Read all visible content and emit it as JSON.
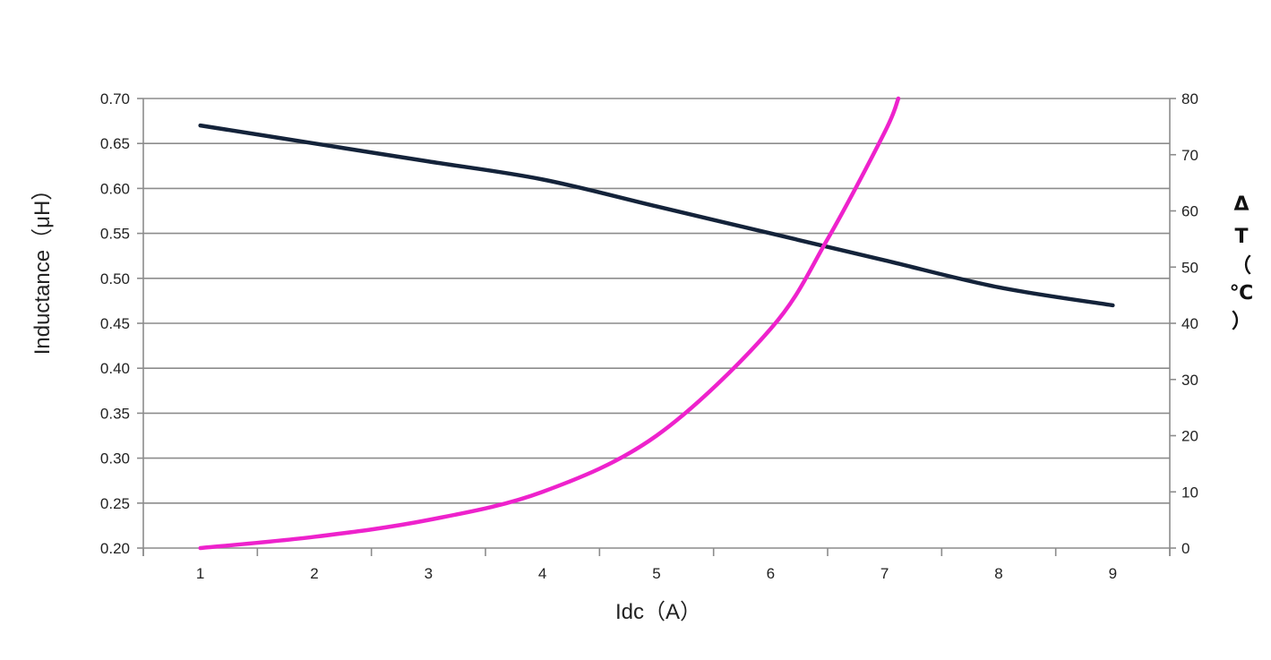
{
  "chart_data": {
    "type": "line",
    "xlabel": "Idc（A）",
    "ylabel": "Inductance（μH）",
    "y2label_chars": [
      "Δ",
      "T",
      "（",
      "℃",
      "）"
    ],
    "x": [
      1,
      2,
      3,
      4,
      5,
      6,
      7,
      8,
      9
    ],
    "x_ticks": [
      "1",
      "2",
      "3",
      "4",
      "5",
      "6",
      "7",
      "8",
      "9"
    ],
    "y_ticks": [
      "0.20",
      "0.25",
      "0.30",
      "0.35",
      "0.40",
      "0.45",
      "0.50",
      "0.55",
      "0.60",
      "0.65",
      "0.70"
    ],
    "y2_ticks": [
      "0",
      "10",
      "20",
      "30",
      "40",
      "50",
      "60",
      "70",
      "80"
    ],
    "xlim": [
      0.5,
      9.5
    ],
    "ylim": [
      0.2,
      0.7
    ],
    "y2lim": [
      0,
      80
    ],
    "grid": true,
    "series": [
      {
        "axis": "left",
        "color": "#14233a",
        "x": [
          1,
          2,
          3,
          4,
          5,
          6,
          7,
          8,
          9
        ],
        "values": [
          0.67,
          0.65,
          0.63,
          0.61,
          0.58,
          0.55,
          0.52,
          0.49,
          0.47
        ]
      },
      {
        "axis": "right",
        "color": "#ee22cc",
        "x": [
          1,
          2,
          3,
          4,
          5,
          6,
          6.5,
          7,
          7.12
        ],
        "values": [
          0,
          2,
          5,
          10,
          20,
          39,
          55,
          74,
          80
        ]
      }
    ]
  }
}
